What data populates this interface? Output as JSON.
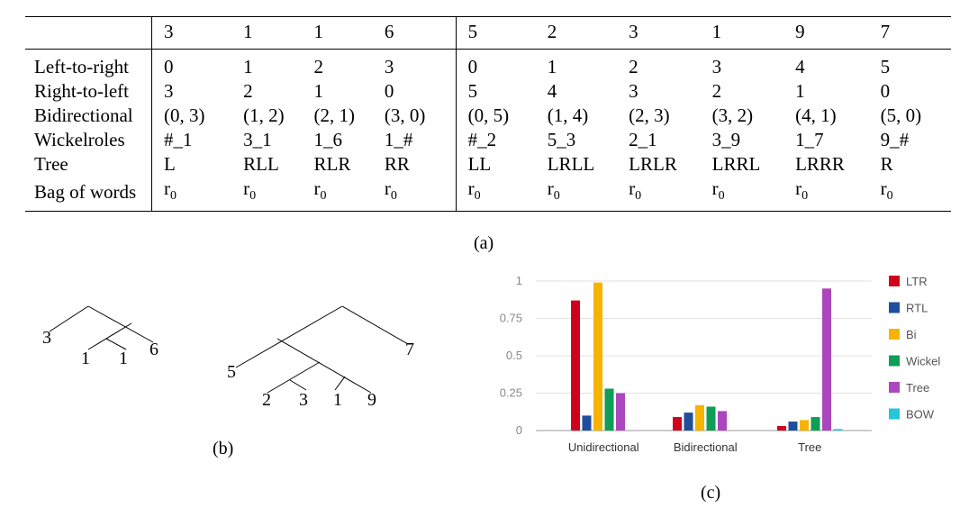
{
  "table": {
    "header": [
      "3",
      "1",
      "1",
      "6",
      "5",
      "2",
      "3",
      "1",
      "9",
      "7"
    ],
    "rows": [
      {
        "label": "Left-to-right",
        "cells": [
          "0",
          "1",
          "2",
          "3",
          "0",
          "1",
          "2",
          "3",
          "4",
          "5"
        ]
      },
      {
        "label": "Right-to-left",
        "cells": [
          "3",
          "2",
          "1",
          "0",
          "5",
          "4",
          "3",
          "2",
          "1",
          "0"
        ]
      },
      {
        "label": "Bidirectional",
        "cells": [
          "(0, 3)",
          "(1, 2)",
          "(2, 1)",
          "(3, 0)",
          "(0, 5)",
          "(1, 4)",
          "(2, 3)",
          "(3, 2)",
          "(4, 1)",
          "(5, 0)"
        ]
      },
      {
        "label": "Wickelroles",
        "cells": [
          "#_1",
          "3_1",
          "1_6",
          "1_#",
          "#_2",
          "5_3",
          "2_1",
          "3_9",
          "1_7",
          "9_#"
        ]
      },
      {
        "label": "Tree",
        "cells": [
          "L",
          "RLL",
          "RLR",
          "RR",
          "LL",
          "LRLL",
          "LRLR",
          "LRRL",
          "LRRR",
          "R"
        ]
      },
      {
        "label": "Bag of words",
        "cells": [
          "r",
          "r",
          "r",
          "r",
          "r",
          "r",
          "r",
          "r",
          "r",
          "r"
        ],
        "subscript": "0"
      }
    ]
  },
  "captions": {
    "a": "(a)",
    "b": "(b)",
    "c": "(c)"
  },
  "trees": {
    "tree1_leaves": [
      "3",
      "1",
      "1",
      "6"
    ],
    "tree2_leaves": [
      "5",
      "2",
      "3",
      "1",
      "9",
      "7"
    ]
  },
  "colors": {
    "LTR": "#d0021b",
    "RTL": "#1f4e9c",
    "Bi": "#f6b400",
    "Wickel": "#0f9d58",
    "Tree": "#ab47bc",
    "BOW": "#26c6da"
  },
  "chart_data": {
    "type": "bar",
    "categories": [
      "Unidirectional",
      "Bidirectional",
      "Tree"
    ],
    "series": [
      {
        "name": "LTR",
        "values": [
          0.87,
          0.09,
          0.03
        ]
      },
      {
        "name": "RTL",
        "values": [
          0.1,
          0.12,
          0.06
        ]
      },
      {
        "name": "Bi",
        "values": [
          0.99,
          0.17,
          0.07
        ]
      },
      {
        "name": "Wickel",
        "values": [
          0.28,
          0.16,
          0.09
        ]
      },
      {
        "name": "Tree",
        "values": [
          0.25,
          0.13,
          0.95
        ]
      },
      {
        "name": "BOW",
        "values": [
          0.0,
          0.0,
          0.01
        ]
      }
    ],
    "yticks": [
      "0",
      "0.25",
      "0.5",
      "0.75",
      "1"
    ],
    "ylim": [
      0,
      1
    ],
    "grid": true,
    "legend": "right"
  }
}
